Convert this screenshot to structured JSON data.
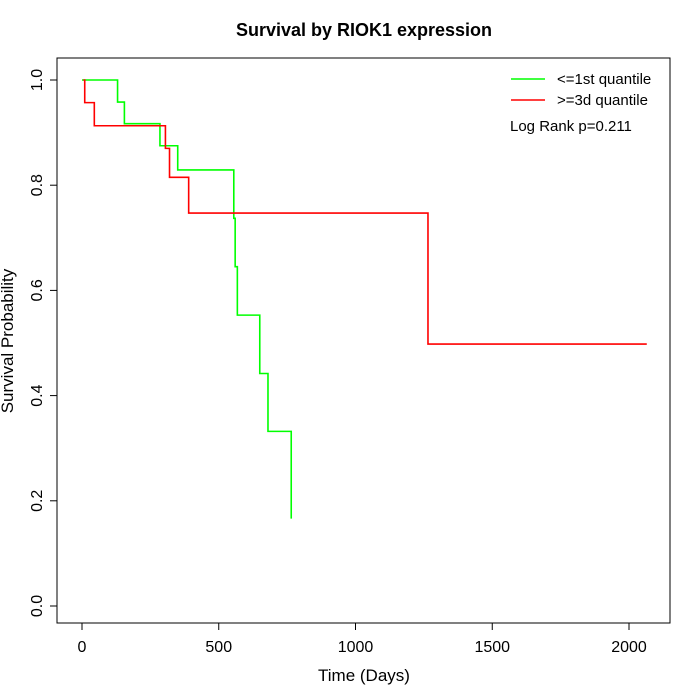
{
  "chart_data": {
    "type": "line",
    "title": "Survival by RIOK1 expression",
    "xlabel": "Time (Days)",
    "ylabel": "Survival Probability",
    "xlim": [
      0,
      2070
    ],
    "ylim": [
      0,
      1
    ],
    "xticks": [
      0,
      500,
      1000,
      1500,
      2000
    ],
    "yticks": [
      0.0,
      0.2,
      0.4,
      0.6,
      0.8,
      1.0
    ],
    "xtick_labels": [
      "0",
      "500",
      "1000",
      "1500",
      "2000"
    ],
    "ytick_labels": [
      "0.0",
      "0.2",
      "0.4",
      "0.6",
      "0.8",
      "1.0"
    ],
    "legend_position": "top-right",
    "annotation": "Log Rank p=0.211",
    "grid": false,
    "series": [
      {
        "name": "<=1st quantile",
        "color": "#00ff00",
        "step_points": [
          [
            0,
            1.0
          ],
          [
            130,
            1.0
          ],
          [
            130,
            0.958
          ],
          [
            155,
            0.958
          ],
          [
            155,
            0.917
          ],
          [
            285,
            0.917
          ],
          [
            285,
            0.875
          ],
          [
            350,
            0.875
          ],
          [
            350,
            0.829
          ],
          [
            555,
            0.829
          ],
          [
            555,
            0.737
          ],
          [
            560,
            0.737
          ],
          [
            560,
            0.645
          ],
          [
            568,
            0.645
          ],
          [
            568,
            0.553
          ],
          [
            650,
            0.553
          ],
          [
            650,
            0.442
          ],
          [
            680,
            0.442
          ],
          [
            680,
            0.332
          ],
          [
            765,
            0.332
          ],
          [
            765,
            0.166
          ]
        ]
      },
      {
        "name": ">=3d quantile",
        "color": "#ff0000",
        "step_points": [
          [
            5,
            1.0
          ],
          [
            10,
            1.0
          ],
          [
            10,
            0.957
          ],
          [
            45,
            0.957
          ],
          [
            45,
            0.913
          ],
          [
            305,
            0.913
          ],
          [
            305,
            0.87
          ],
          [
            320,
            0.87
          ],
          [
            320,
            0.815
          ],
          [
            390,
            0.815
          ],
          [
            390,
            0.747
          ],
          [
            1265,
            0.747
          ],
          [
            1265,
            0.498
          ],
          [
            2065,
            0.498
          ]
        ]
      }
    ]
  }
}
